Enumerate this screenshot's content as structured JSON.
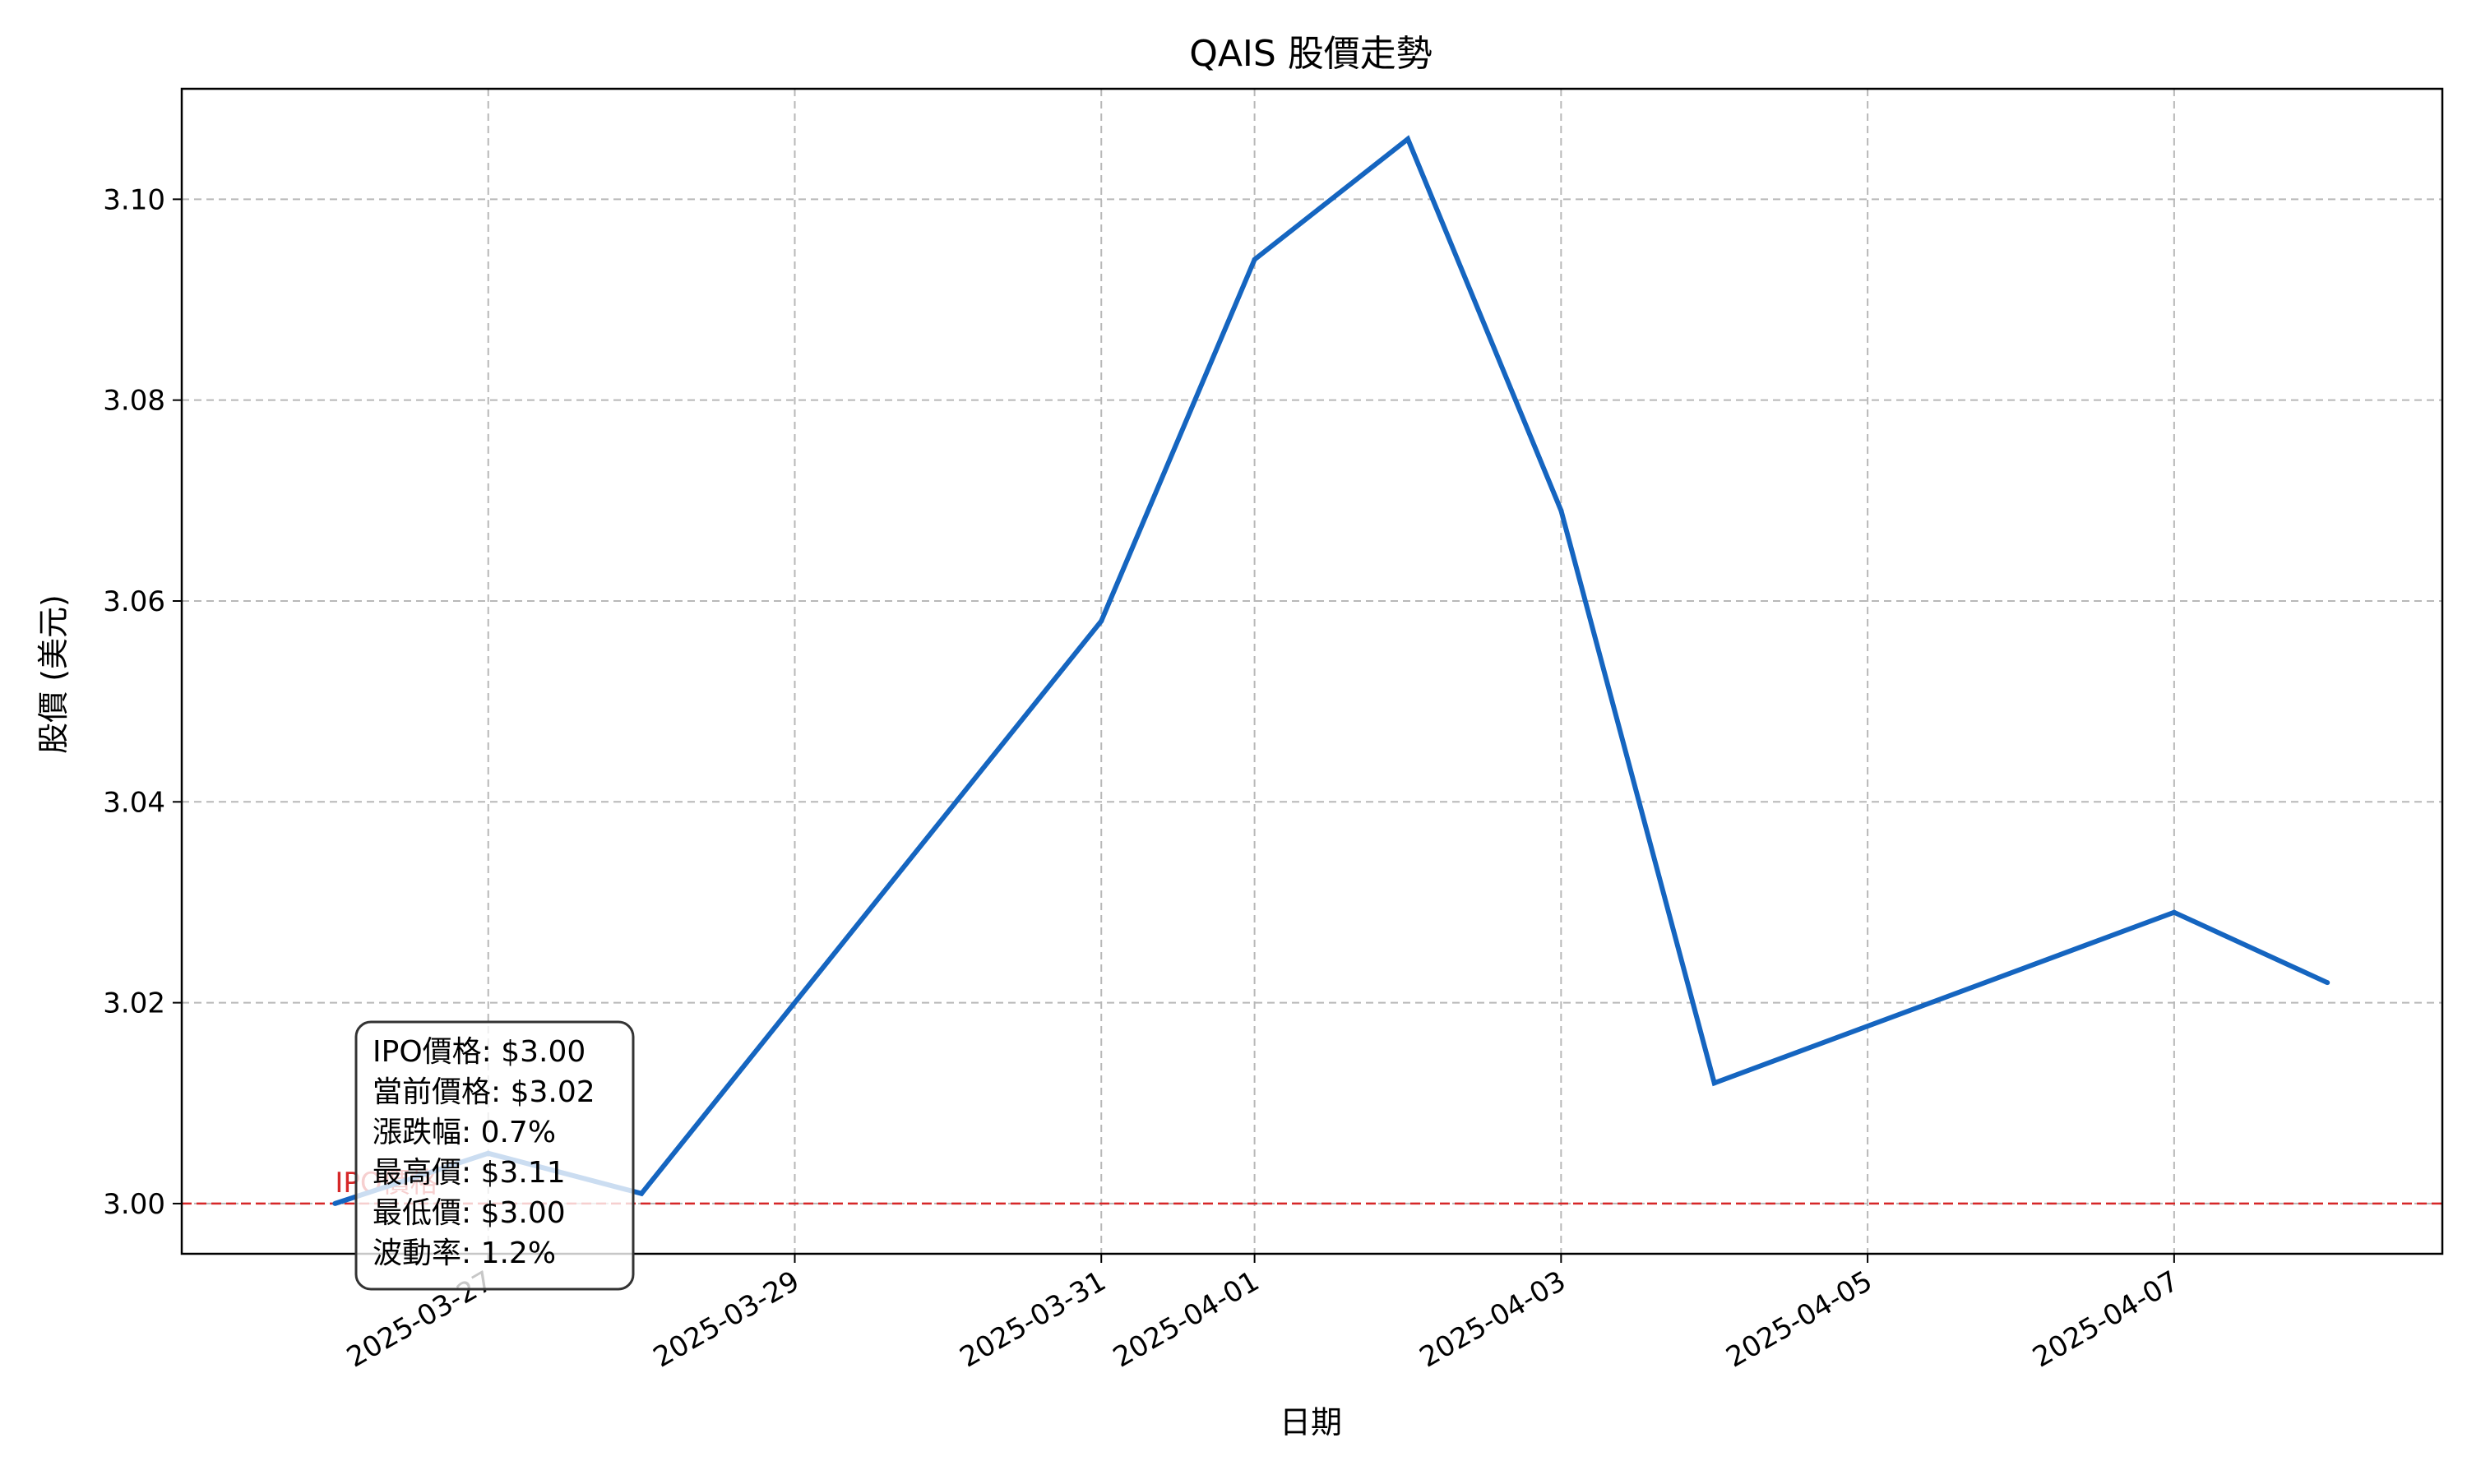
{
  "chart_data": {
    "type": "line",
    "title": "QAIS 股價走勢",
    "xlabel": "日期",
    "ylabel": "股價 (美元)",
    "x_ticks": [
      "2025-03-27",
      "2025-03-29",
      "2025-03-31",
      "2025-04-01",
      "2025-04-03",
      "2025-04-05",
      "2025-04-07"
    ],
    "y_ticks": [
      "3.00",
      "3.02",
      "3.04",
      "3.06",
      "3.08",
      "3.10"
    ],
    "ylim": [
      2.995,
      3.111
    ],
    "xlim": [
      "2025-03-25T00:00",
      "2025-04-08T18:00"
    ],
    "grid": true,
    "series": [
      {
        "color": "#1565c0",
        "x": [
          "2025-03-26",
          "2025-03-27",
          "2025-03-28",
          "2025-03-31",
          "2025-04-01",
          "2025-04-02",
          "2025-04-03",
          "2025-04-04",
          "2025-04-07",
          "2025-04-08"
        ],
        "y": [
          3.0,
          3.005,
          3.001,
          3.058,
          3.094,
          3.106,
          3.069,
          3.012,
          3.029,
          3.022
        ]
      }
    ],
    "reference_line": {
      "y": 3.0,
      "label": "IPO價格",
      "color": "#d62728"
    },
    "stats_box": [
      "IPO價格: $3.00",
      "當前價格: $3.02",
      "漲跌幅: 0.7%",
      "最高價: $3.11",
      "最低價: $3.00",
      "波動率: 1.2%"
    ]
  }
}
